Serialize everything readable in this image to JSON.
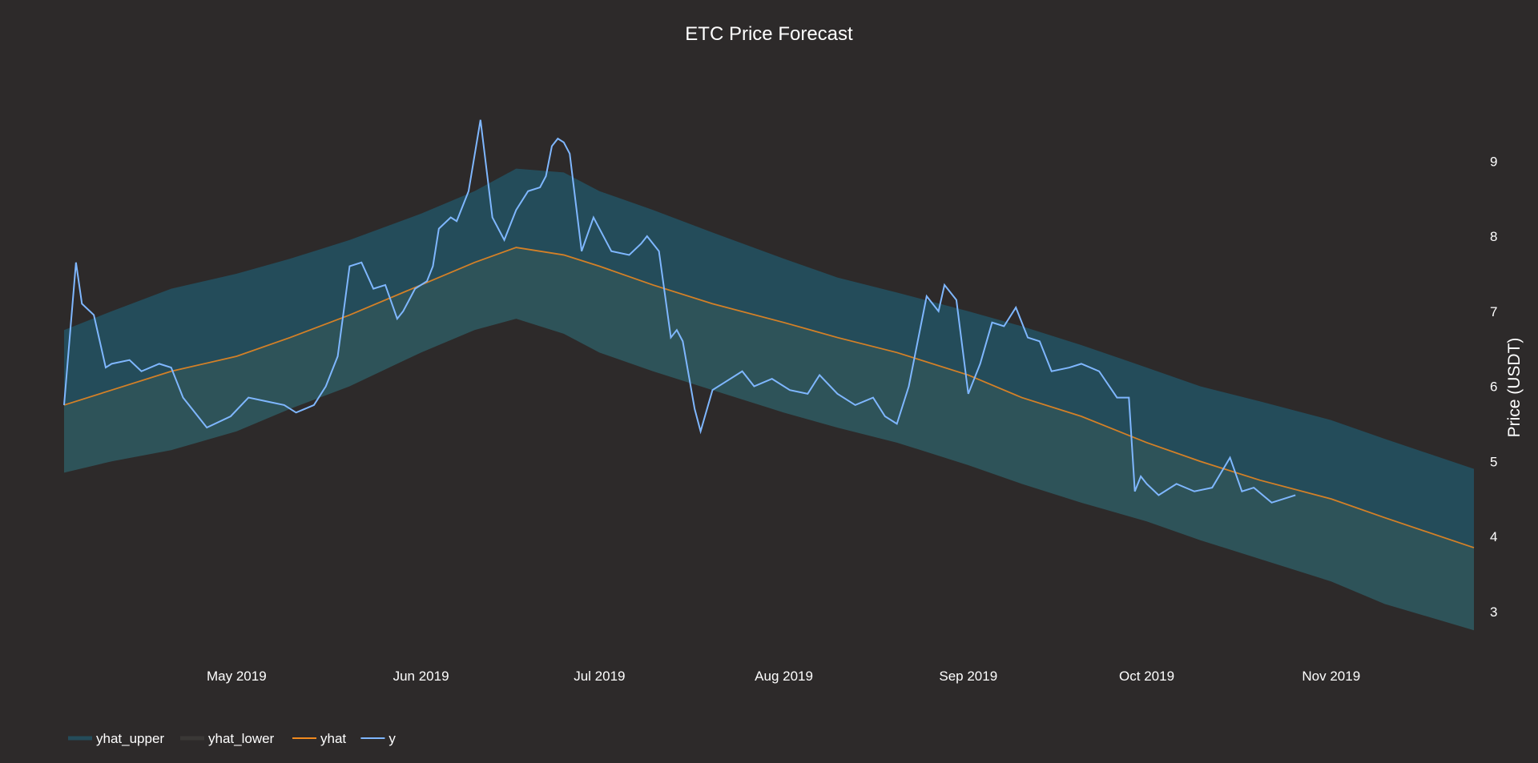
{
  "colors": {
    "background": "#2d2a2a",
    "upper_band": "#244c5a",
    "lower_band": "#2e5359",
    "yhat_line": "#f28a1e",
    "y_line": "#7fb7ff",
    "text": "#ffffff"
  },
  "chart_data": {
    "type": "line",
    "title": "ETC Price Forecast",
    "xlabel": "",
    "ylabel": "Price (USDT)",
    "y_axis_side": "right",
    "grid": false,
    "legend_position": "bottom-left",
    "xlim": [
      "2019-04-02",
      "2019-11-25"
    ],
    "ylim": [
      2.4,
      10.4
    ],
    "x_ticks": [
      {
        "date": "2019-05-01",
        "label": "May 2019"
      },
      {
        "date": "2019-06-01",
        "label": "Jun 2019"
      },
      {
        "date": "2019-07-01",
        "label": "Jul 2019"
      },
      {
        "date": "2019-08-01",
        "label": "Aug 2019"
      },
      {
        "date": "2019-09-01",
        "label": "Sep 2019"
      },
      {
        "date": "2019-10-01",
        "label": "Oct 2019"
      },
      {
        "date": "2019-11-01",
        "label": "Nov 2019"
      }
    ],
    "y_ticks": [
      3,
      4,
      5,
      6,
      7,
      8,
      9
    ],
    "legend": [
      "yhat_upper",
      "yhat_lower",
      "yhat",
      "y"
    ],
    "series": [
      {
        "name": "yhat_upper",
        "type": "band-top",
        "x": [
          "2019-04-02",
          "2019-04-10",
          "2019-04-20",
          "2019-05-01",
          "2019-05-10",
          "2019-05-20",
          "2019-06-01",
          "2019-06-10",
          "2019-06-17",
          "2019-06-25",
          "2019-07-01",
          "2019-07-10",
          "2019-07-20",
          "2019-08-01",
          "2019-08-10",
          "2019-08-20",
          "2019-09-01",
          "2019-09-10",
          "2019-09-20",
          "2019-10-01",
          "2019-10-10",
          "2019-10-20",
          "2019-11-01",
          "2019-11-10",
          "2019-11-25"
        ],
        "y": [
          6.75,
          7.0,
          7.3,
          7.5,
          7.7,
          7.95,
          8.3,
          8.6,
          8.9,
          8.85,
          8.6,
          8.35,
          8.05,
          7.7,
          7.45,
          7.25,
          7.0,
          6.8,
          6.55,
          6.25,
          6.0,
          5.8,
          5.55,
          5.3,
          4.9
        ]
      },
      {
        "name": "yhat",
        "type": "line",
        "x": [
          "2019-04-02",
          "2019-04-10",
          "2019-04-20",
          "2019-05-01",
          "2019-05-10",
          "2019-05-20",
          "2019-06-01",
          "2019-06-10",
          "2019-06-17",
          "2019-06-25",
          "2019-07-01",
          "2019-07-10",
          "2019-07-20",
          "2019-08-01",
          "2019-08-10",
          "2019-08-20",
          "2019-09-01",
          "2019-09-10",
          "2019-09-20",
          "2019-10-01",
          "2019-10-10",
          "2019-10-20",
          "2019-11-01",
          "2019-11-10",
          "2019-11-25"
        ],
        "y": [
          5.75,
          5.95,
          6.2,
          6.4,
          6.65,
          6.95,
          7.35,
          7.65,
          7.85,
          7.75,
          7.6,
          7.35,
          7.1,
          6.85,
          6.65,
          6.45,
          6.15,
          5.85,
          5.6,
          5.25,
          5.0,
          4.75,
          4.5,
          4.25,
          3.85
        ]
      },
      {
        "name": "yhat_lower",
        "type": "band-bottom",
        "x": [
          "2019-04-02",
          "2019-04-10",
          "2019-04-20",
          "2019-05-01",
          "2019-05-10",
          "2019-05-20",
          "2019-06-01",
          "2019-06-10",
          "2019-06-17",
          "2019-06-25",
          "2019-07-01",
          "2019-07-10",
          "2019-07-20",
          "2019-08-01",
          "2019-08-10",
          "2019-08-20",
          "2019-09-01",
          "2019-09-10",
          "2019-09-20",
          "2019-10-01",
          "2019-10-10",
          "2019-10-20",
          "2019-11-01",
          "2019-11-10",
          "2019-11-25"
        ],
        "y": [
          4.85,
          5.0,
          5.15,
          5.4,
          5.7,
          6.0,
          6.45,
          6.75,
          6.9,
          6.7,
          6.45,
          6.2,
          5.95,
          5.65,
          5.45,
          5.25,
          4.95,
          4.7,
          4.45,
          4.2,
          3.95,
          3.7,
          3.4,
          3.1,
          2.75
        ]
      },
      {
        "name": "y",
        "type": "line",
        "x": [
          "2019-04-02",
          "2019-04-04",
          "2019-04-05",
          "2019-04-07",
          "2019-04-09",
          "2019-04-10",
          "2019-04-13",
          "2019-04-15",
          "2019-04-18",
          "2019-04-20",
          "2019-04-22",
          "2019-04-26",
          "2019-04-30",
          "2019-05-03",
          "2019-05-06",
          "2019-05-09",
          "2019-05-11",
          "2019-05-14",
          "2019-05-16",
          "2019-05-18",
          "2019-05-20",
          "2019-05-22",
          "2019-05-24",
          "2019-05-26",
          "2019-05-28",
          "2019-05-29",
          "2019-05-31",
          "2019-06-02",
          "2019-06-03",
          "2019-06-04",
          "2019-06-06",
          "2019-06-07",
          "2019-06-09",
          "2019-06-11",
          "2019-06-13",
          "2019-06-15",
          "2019-06-17",
          "2019-06-19",
          "2019-06-21",
          "2019-06-22",
          "2019-06-23",
          "2019-06-24",
          "2019-06-25",
          "2019-06-26",
          "2019-06-28",
          "2019-06-30",
          "2019-07-03",
          "2019-07-06",
          "2019-07-08",
          "2019-07-09",
          "2019-07-11",
          "2019-07-13",
          "2019-07-14",
          "2019-07-15",
          "2019-07-17",
          "2019-07-18",
          "2019-07-20",
          "2019-07-22",
          "2019-07-25",
          "2019-07-27",
          "2019-07-30",
          "2019-08-02",
          "2019-08-05",
          "2019-08-07",
          "2019-08-10",
          "2019-08-13",
          "2019-08-16",
          "2019-08-18",
          "2019-08-20",
          "2019-08-22",
          "2019-08-25",
          "2019-08-27",
          "2019-08-28",
          "2019-08-30",
          "2019-09-01",
          "2019-09-03",
          "2019-09-05",
          "2019-09-07",
          "2019-09-09",
          "2019-09-11",
          "2019-09-13",
          "2019-09-15",
          "2019-09-18",
          "2019-09-20",
          "2019-09-23",
          "2019-09-26",
          "2019-09-28",
          "2019-09-29",
          "2019-09-30",
          "2019-10-01",
          "2019-10-03",
          "2019-10-06",
          "2019-10-09",
          "2019-10-12",
          "2019-10-15",
          "2019-10-17",
          "2019-10-19",
          "2019-10-22",
          "2019-10-26"
        ],
        "y": [
          5.75,
          7.65,
          7.1,
          6.95,
          6.25,
          6.3,
          6.35,
          6.2,
          6.3,
          6.25,
          5.85,
          5.45,
          5.6,
          5.85,
          5.8,
          5.75,
          5.65,
          5.75,
          6.0,
          6.4,
          7.6,
          7.65,
          7.3,
          7.35,
          6.9,
          7.0,
          7.3,
          7.4,
          7.6,
          8.1,
          8.25,
          8.2,
          8.6,
          9.55,
          8.25,
          7.95,
          8.35,
          8.6,
          8.65,
          8.8,
          9.2,
          9.3,
          9.25,
          9.1,
          7.8,
          8.25,
          7.8,
          7.75,
          7.9,
          8.0,
          7.8,
          6.65,
          6.75,
          6.6,
          5.7,
          5.4,
          5.95,
          6.05,
          6.2,
          6.0,
          6.1,
          5.95,
          5.9,
          6.15,
          5.9,
          5.75,
          5.85,
          5.6,
          5.5,
          6.0,
          7.2,
          7.0,
          7.35,
          7.15,
          5.9,
          6.3,
          6.85,
          6.8,
          7.05,
          6.65,
          6.6,
          6.2,
          6.25,
          6.3,
          6.2,
          5.85,
          5.85,
          4.6,
          4.8,
          4.7,
          4.55,
          4.7,
          4.6,
          4.65,
          5.05,
          4.6,
          4.65,
          4.45,
          4.55
        ]
      }
    ]
  }
}
